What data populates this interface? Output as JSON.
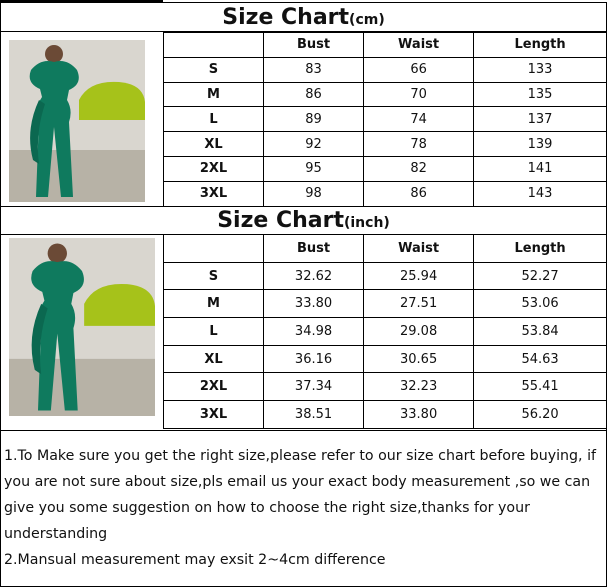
{
  "cm_chart": {
    "title": "Size Chart",
    "unit": "(cm)",
    "headers": [
      "",
      "Bust",
      "Waist",
      "Length"
    ],
    "rows": [
      [
        "S",
        "83",
        "66",
        "133"
      ],
      [
        "M",
        "86",
        "70",
        "135"
      ],
      [
        "L",
        "89",
        "74",
        "137"
      ],
      [
        "XL",
        "92",
        "78",
        "139"
      ],
      [
        "2XL",
        "95",
        "82",
        "141"
      ],
      [
        "3XL",
        "98",
        "86",
        "143"
      ]
    ]
  },
  "inch_chart": {
    "title": "Size Chart",
    "unit": "(inch)",
    "headers": [
      "",
      "Bust",
      "Waist",
      "Length"
    ],
    "rows": [
      [
        "S",
        "32.62",
        "25.94",
        "52.27"
      ],
      [
        "M",
        "33.80",
        "27.51",
        "53.06"
      ],
      [
        "L",
        "34.98",
        "29.08",
        "53.84"
      ],
      [
        "XL",
        "36.16",
        "30.65",
        "54.63"
      ],
      [
        "2XL",
        "37.34",
        "32.23",
        "55.41"
      ],
      [
        "3XL",
        "38.51",
        "33.80",
        "56.20"
      ]
    ]
  },
  "notes": [
    "1.To Make sure you get the right size,please refer to our size chart before buying, if you are not sure about size,pls email us your exact body measurement ,so we can give you some suggestion on how to choose the right size,thanks for your understanding",
    "2.Mansual measurement may exsit 2~4cm difference"
  ],
  "colors": {
    "garment": "#0f7a5e",
    "sofa": "#a6c21a"
  }
}
